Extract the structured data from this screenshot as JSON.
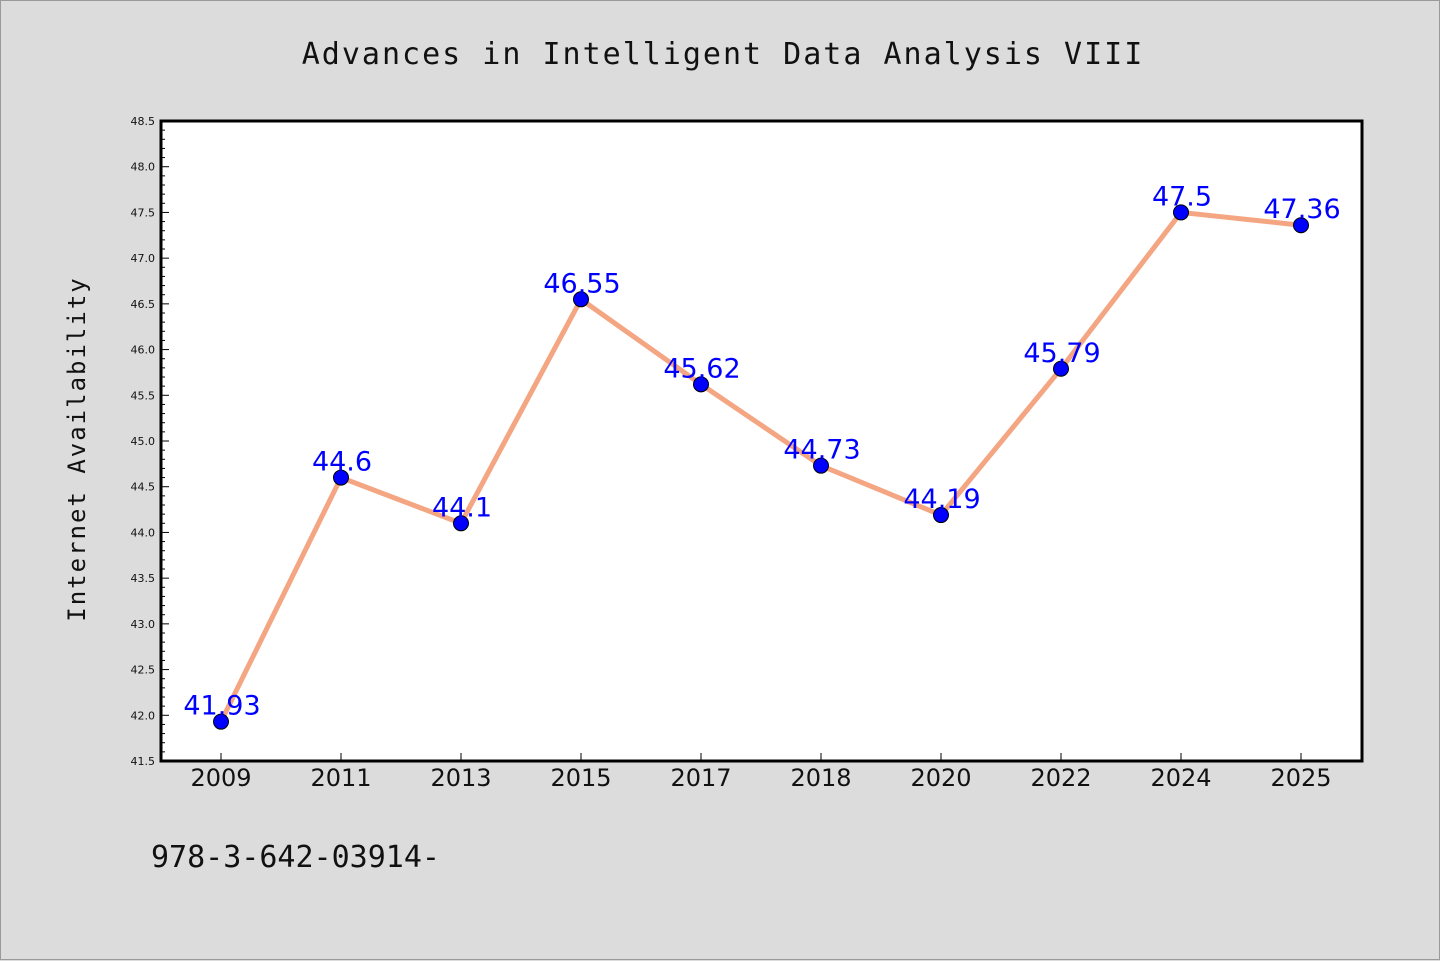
{
  "chart_data": {
    "type": "line",
    "title": "Advances in Intelligent Data Analysis VIII",
    "xlabel": "",
    "ylabel": "Internet Availability",
    "categories": [
      "2009",
      "2011",
      "2013",
      "2015",
      "2017",
      "2018",
      "2020",
      "2022",
      "2024",
      "2025"
    ],
    "series": [
      {
        "values": [
          41.93,
          44.6,
          44.1,
          46.55,
          45.62,
          44.73,
          44.19,
          45.79,
          47.5,
          47.36
        ],
        "labels": [
          "41.93",
          "44.6",
          "44.1",
          "46.55",
          "45.62",
          "44.73",
          "44.19",
          "45.79",
          "47.5",
          "47.36"
        ]
      }
    ],
    "ylim": [
      41.5,
      48.5
    ],
    "yticks": [
      "41.5",
      "42.0",
      "42.5",
      "43.0",
      "43.5",
      "44.0",
      "44.5",
      "45.0",
      "45.5",
      "46.0",
      "46.5",
      "47.0",
      "47.5",
      "48.0",
      "48.5"
    ],
    "grid": false,
    "legend": "none",
    "colors": {
      "line": "#f4a582",
      "marker": "#0000ff",
      "data_label": "#0000ff",
      "background": "#dcdcdc",
      "plot_background": "#ffffff"
    }
  },
  "footer": {
    "text": "978-3-642-03914-"
  }
}
